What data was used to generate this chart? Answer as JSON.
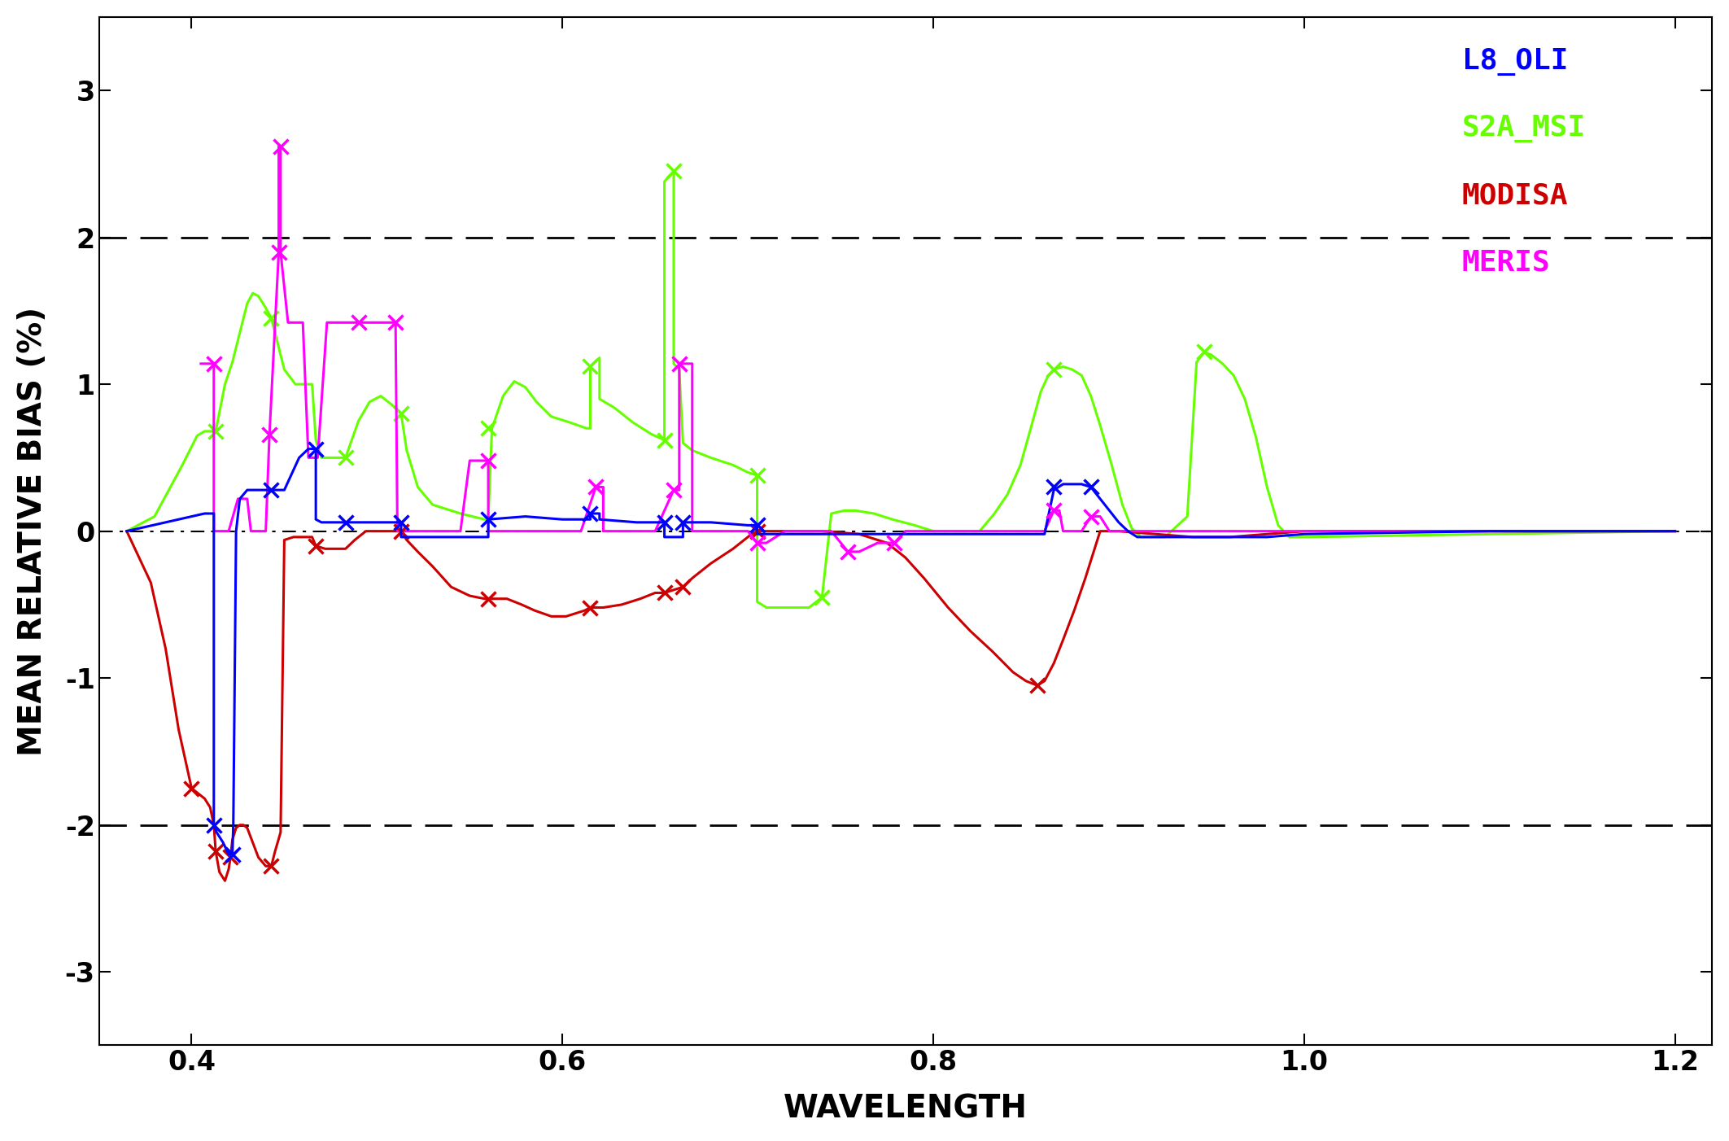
{
  "xlabel": "WAVELENGTH",
  "ylabel": "MEAN RELATIVE BIAS (%)",
  "xlim": [
    0.35,
    1.22
  ],
  "ylim": [
    -3.5,
    3.5
  ],
  "yticks": [
    -3,
    -2,
    -1,
    0,
    1,
    2,
    3
  ],
  "xticks": [
    0.4,
    0.6,
    0.8,
    1.0,
    1.2
  ],
  "colors": {
    "L8_OLI": "#0000ff",
    "S2A_MSI": "#66ff00",
    "MODISA": "#cc0000",
    "MERIS": "#ff00ff"
  },
  "L8_OLI_line": [
    [
      0.365,
      0.0
    ],
    [
      0.407,
      0.12
    ],
    [
      0.412,
      0.12
    ],
    [
      0.412,
      -2.0
    ],
    [
      0.4135,
      -2.05
    ],
    [
      0.417,
      -2.12
    ],
    [
      0.42,
      -2.2
    ],
    [
      0.422,
      -2.2
    ],
    [
      0.4225,
      -2.0
    ],
    [
      0.424,
      0.0
    ],
    [
      0.426,
      0.22
    ],
    [
      0.43,
      0.28
    ],
    [
      0.44,
      0.28
    ],
    [
      0.443,
      0.28
    ],
    [
      0.45,
      0.28
    ],
    [
      0.458,
      0.5
    ],
    [
      0.463,
      0.56
    ],
    [
      0.467,
      0.56
    ],
    [
      0.467,
      0.08
    ],
    [
      0.47,
      0.06
    ],
    [
      0.483,
      0.06
    ],
    [
      0.495,
      0.06
    ],
    [
      0.513,
      0.06
    ],
    [
      0.513,
      -0.04
    ],
    [
      0.53,
      -0.04
    ],
    [
      0.56,
      -0.04
    ],
    [
      0.56,
      0.08
    ],
    [
      0.57,
      0.09
    ],
    [
      0.58,
      0.1
    ],
    [
      0.6,
      0.08
    ],
    [
      0.61,
      0.08
    ],
    [
      0.615,
      0.08
    ],
    [
      0.615,
      0.12
    ],
    [
      0.62,
      0.12
    ],
    [
      0.62,
      0.08
    ],
    [
      0.64,
      0.06
    ],
    [
      0.655,
      0.06
    ],
    [
      0.655,
      -0.04
    ],
    [
      0.66,
      -0.04
    ],
    [
      0.665,
      -0.04
    ],
    [
      0.665,
      0.06
    ],
    [
      0.68,
      0.06
    ],
    [
      0.7,
      0.04
    ],
    [
      0.705,
      0.04
    ],
    [
      0.705,
      -0.02
    ],
    [
      0.71,
      -0.02
    ],
    [
      0.86,
      -0.02
    ],
    [
      0.865,
      0.28
    ],
    [
      0.87,
      0.32
    ],
    [
      0.875,
      0.32
    ],
    [
      0.88,
      0.32
    ],
    [
      0.885,
      0.3
    ],
    [
      0.89,
      0.22
    ],
    [
      0.895,
      0.14
    ],
    [
      0.9,
      0.06
    ],
    [
      0.905,
      0.0
    ],
    [
      0.91,
      -0.04
    ],
    [
      0.94,
      -0.04
    ],
    [
      0.96,
      -0.04
    ],
    [
      0.98,
      -0.04
    ],
    [
      1.0,
      -0.02
    ],
    [
      1.1,
      0.0
    ],
    [
      1.2,
      0.0
    ]
  ],
  "L8_OLI_markers": [
    [
      0.412,
      -2.0
    ],
    [
      0.422,
      -2.2
    ],
    [
      0.443,
      0.28
    ],
    [
      0.467,
      0.56
    ],
    [
      0.483,
      0.06
    ],
    [
      0.513,
      0.06
    ],
    [
      0.56,
      0.08
    ],
    [
      0.615,
      0.12
    ],
    [
      0.655,
      0.06
    ],
    [
      0.665,
      0.06
    ],
    [
      0.705,
      0.04
    ],
    [
      0.865,
      0.3
    ],
    [
      0.885,
      0.3
    ]
  ],
  "S2A_MSI_line": [
    [
      0.365,
      0.0
    ],
    [
      0.38,
      0.1
    ],
    [
      0.395,
      0.45
    ],
    [
      0.403,
      0.65
    ],
    [
      0.407,
      0.68
    ],
    [
      0.413,
      0.68
    ],
    [
      0.418,
      1.0
    ],
    [
      0.422,
      1.15
    ],
    [
      0.426,
      1.35
    ],
    [
      0.43,
      1.55
    ],
    [
      0.433,
      1.62
    ],
    [
      0.436,
      1.6
    ],
    [
      0.44,
      1.52
    ],
    [
      0.443,
      1.45
    ],
    [
      0.446,
      1.3
    ],
    [
      0.45,
      1.1
    ],
    [
      0.456,
      1.0
    ],
    [
      0.462,
      1.0
    ],
    [
      0.465,
      1.0
    ],
    [
      0.467,
      0.62
    ],
    [
      0.47,
      0.5
    ],
    [
      0.476,
      0.5
    ],
    [
      0.483,
      0.5
    ],
    [
      0.49,
      0.75
    ],
    [
      0.496,
      0.88
    ],
    [
      0.502,
      0.92
    ],
    [
      0.508,
      0.86
    ],
    [
      0.513,
      0.8
    ],
    [
      0.513,
      0.8
    ],
    [
      0.516,
      0.55
    ],
    [
      0.522,
      0.3
    ],
    [
      0.53,
      0.18
    ],
    [
      0.545,
      0.12
    ],
    [
      0.558,
      0.08
    ],
    [
      0.56,
      0.08
    ],
    [
      0.562,
      0.7
    ],
    [
      0.568,
      0.92
    ],
    [
      0.574,
      1.02
    ],
    [
      0.58,
      0.98
    ],
    [
      0.586,
      0.88
    ],
    [
      0.594,
      0.78
    ],
    [
      0.604,
      0.74
    ],
    [
      0.613,
      0.7
    ],
    [
      0.615,
      0.7
    ],
    [
      0.615,
      1.12
    ],
    [
      0.62,
      1.18
    ],
    [
      0.62,
      0.9
    ],
    [
      0.628,
      0.84
    ],
    [
      0.638,
      0.74
    ],
    [
      0.648,
      0.66
    ],
    [
      0.655,
      0.62
    ],
    [
      0.655,
      2.38
    ],
    [
      0.66,
      2.45
    ],
    [
      0.66,
      1.14
    ],
    [
      0.663,
      1.1
    ],
    [
      0.665,
      0.6
    ],
    [
      0.67,
      0.55
    ],
    [
      0.68,
      0.5
    ],
    [
      0.692,
      0.45
    ],
    [
      0.7,
      0.4
    ],
    [
      0.705,
      0.38
    ],
    [
      0.705,
      -0.48
    ],
    [
      0.71,
      -0.52
    ],
    [
      0.72,
      -0.52
    ],
    [
      0.733,
      -0.52
    ],
    [
      0.74,
      -0.45
    ],
    [
      0.745,
      0.12
    ],
    [
      0.752,
      0.14
    ],
    [
      0.758,
      0.14
    ],
    [
      0.768,
      0.12
    ],
    [
      0.778,
      0.08
    ],
    [
      0.79,
      0.04
    ],
    [
      0.8,
      0.0
    ],
    [
      0.825,
      0.0
    ],
    [
      0.833,
      0.12
    ],
    [
      0.84,
      0.25
    ],
    [
      0.847,
      0.45
    ],
    [
      0.853,
      0.72
    ],
    [
      0.858,
      0.95
    ],
    [
      0.862,
      1.06
    ],
    [
      0.865,
      1.1
    ],
    [
      0.87,
      1.12
    ],
    [
      0.875,
      1.1
    ],
    [
      0.88,
      1.06
    ],
    [
      0.885,
      0.92
    ],
    [
      0.89,
      0.72
    ],
    [
      0.896,
      0.46
    ],
    [
      0.902,
      0.18
    ],
    [
      0.907,
      0.02
    ],
    [
      0.912,
      -0.04
    ],
    [
      0.925,
      -0.04
    ],
    [
      0.937,
      0.1
    ],
    [
      0.942,
      1.15
    ],
    [
      0.946,
      1.22
    ],
    [
      0.95,
      1.2
    ],
    [
      0.956,
      1.14
    ],
    [
      0.962,
      1.06
    ],
    [
      0.968,
      0.9
    ],
    [
      0.974,
      0.64
    ],
    [
      0.98,
      0.3
    ],
    [
      0.986,
      0.04
    ],
    [
      0.992,
      -0.04
    ],
    [
      1.0,
      -0.04
    ],
    [
      1.1,
      -0.02
    ],
    [
      1.2,
      0.0
    ]
  ],
  "S2A_MSI_markers": [
    [
      0.413,
      0.68
    ],
    [
      0.443,
      1.45
    ],
    [
      0.483,
      0.5
    ],
    [
      0.513,
      0.8
    ],
    [
      0.56,
      0.7
    ],
    [
      0.615,
      1.12
    ],
    [
      0.655,
      0.62
    ],
    [
      0.66,
      2.45
    ],
    [
      0.705,
      0.38
    ],
    [
      0.74,
      -0.45
    ],
    [
      0.865,
      1.1
    ],
    [
      0.946,
      1.22
    ]
  ],
  "MODISA_line": [
    [
      0.365,
      0.0
    ],
    [
      0.378,
      -0.35
    ],
    [
      0.386,
      -0.8
    ],
    [
      0.393,
      -1.35
    ],
    [
      0.4,
      -1.75
    ],
    [
      0.407,
      -1.82
    ],
    [
      0.41,
      -1.88
    ],
    [
      0.412,
      -2.0
    ],
    [
      0.413,
      -2.18
    ],
    [
      0.415,
      -2.32
    ],
    [
      0.418,
      -2.38
    ],
    [
      0.42,
      -2.3
    ],
    [
      0.421,
      -2.22
    ],
    [
      0.422,
      -2.1
    ],
    [
      0.424,
      -2.02
    ],
    [
      0.426,
      -2.0
    ],
    [
      0.428,
      -2.0
    ],
    [
      0.43,
      -2.02
    ],
    [
      0.433,
      -2.12
    ],
    [
      0.436,
      -2.22
    ],
    [
      0.44,
      -2.28
    ],
    [
      0.443,
      -2.28
    ],
    [
      0.445,
      -2.18
    ],
    [
      0.448,
      -2.05
    ],
    [
      0.45,
      -0.06
    ],
    [
      0.455,
      -0.04
    ],
    [
      0.465,
      -0.04
    ],
    [
      0.467,
      -0.1
    ],
    [
      0.472,
      -0.12
    ],
    [
      0.48,
      -0.12
    ],
    [
      0.483,
      -0.12
    ],
    [
      0.488,
      -0.06
    ],
    [
      0.494,
      0.0
    ],
    [
      0.5,
      0.0
    ],
    [
      0.51,
      0.0
    ],
    [
      0.513,
      0.0
    ],
    [
      0.516,
      -0.06
    ],
    [
      0.522,
      -0.14
    ],
    [
      0.53,
      -0.24
    ],
    [
      0.54,
      -0.38
    ],
    [
      0.55,
      -0.44
    ],
    [
      0.558,
      -0.46
    ],
    [
      0.56,
      -0.46
    ],
    [
      0.57,
      -0.46
    ],
    [
      0.578,
      -0.5
    ],
    [
      0.585,
      -0.54
    ],
    [
      0.594,
      -0.58
    ],
    [
      0.602,
      -0.58
    ],
    [
      0.612,
      -0.54
    ],
    [
      0.615,
      -0.52
    ],
    [
      0.622,
      -0.52
    ],
    [
      0.632,
      -0.5
    ],
    [
      0.642,
      -0.46
    ],
    [
      0.65,
      -0.42
    ],
    [
      0.655,
      -0.42
    ],
    [
      0.66,
      -0.4
    ],
    [
      0.665,
      -0.38
    ],
    [
      0.67,
      -0.32
    ],
    [
      0.68,
      -0.22
    ],
    [
      0.692,
      -0.12
    ],
    [
      0.702,
      -0.02
    ],
    [
      0.705,
      0.0
    ],
    [
      0.72,
      0.0
    ],
    [
      0.74,
      0.0
    ],
    [
      0.76,
      -0.02
    ],
    [
      0.775,
      -0.08
    ],
    [
      0.785,
      -0.18
    ],
    [
      0.795,
      -0.32
    ],
    [
      0.808,
      -0.52
    ],
    [
      0.82,
      -0.68
    ],
    [
      0.832,
      -0.82
    ],
    [
      0.843,
      -0.96
    ],
    [
      0.85,
      -1.02
    ],
    [
      0.856,
      -1.05
    ],
    [
      0.86,
      -1.02
    ],
    [
      0.865,
      -0.9
    ],
    [
      0.87,
      -0.74
    ],
    [
      0.876,
      -0.54
    ],
    [
      0.882,
      -0.32
    ],
    [
      0.887,
      -0.12
    ],
    [
      0.89,
      0.0
    ],
    [
      0.9,
      0.0
    ],
    [
      0.92,
      -0.02
    ],
    [
      0.94,
      -0.04
    ],
    [
      0.95,
      -0.04
    ],
    [
      0.96,
      -0.04
    ],
    [
      0.98,
      -0.02
    ],
    [
      1.0,
      0.0
    ],
    [
      1.2,
      0.0
    ]
  ],
  "MODISA_markers": [
    [
      0.4,
      -1.75
    ],
    [
      0.413,
      -2.18
    ],
    [
      0.421,
      -2.22
    ],
    [
      0.443,
      -2.28
    ],
    [
      0.467,
      -0.1
    ],
    [
      0.513,
      0.0
    ],
    [
      0.56,
      -0.46
    ],
    [
      0.615,
      -0.52
    ],
    [
      0.655,
      -0.42
    ],
    [
      0.665,
      -0.38
    ],
    [
      0.705,
      0.0
    ],
    [
      0.856,
      -1.05
    ]
  ],
  "MERIS_line": [
    [
      0.405,
      1.14
    ],
    [
      0.412,
      1.14
    ],
    [
      0.412,
      0.0
    ],
    [
      0.42,
      0.0
    ],
    [
      0.425,
      0.22
    ],
    [
      0.43,
      0.22
    ],
    [
      0.432,
      0.0
    ],
    [
      0.44,
      0.0
    ],
    [
      0.442,
      0.66
    ],
    [
      0.447,
      1.9
    ],
    [
      0.447,
      2.62
    ],
    [
      0.448,
      2.62
    ],
    [
      0.448,
      1.9
    ],
    [
      0.452,
      1.42
    ],
    [
      0.455,
      1.42
    ],
    [
      0.46,
      1.42
    ],
    [
      0.463,
      0.5
    ],
    [
      0.468,
      0.5
    ],
    [
      0.473,
      1.42
    ],
    [
      0.48,
      1.42
    ],
    [
      0.49,
      1.42
    ],
    [
      0.51,
      1.42
    ],
    [
      0.511,
      0.0
    ],
    [
      0.52,
      0.0
    ],
    [
      0.545,
      0.0
    ],
    [
      0.55,
      0.48
    ],
    [
      0.556,
      0.48
    ],
    [
      0.56,
      0.48
    ],
    [
      0.56,
      0.0
    ],
    [
      0.58,
      0.0
    ],
    [
      0.61,
      0.0
    ],
    [
      0.618,
      0.3
    ],
    [
      0.622,
      0.3
    ],
    [
      0.622,
      0.0
    ],
    [
      0.65,
      0.0
    ],
    [
      0.66,
      0.28
    ],
    [
      0.663,
      0.28
    ],
    [
      0.663,
      1.14
    ],
    [
      0.67,
      1.14
    ],
    [
      0.67,
      0.0
    ],
    [
      0.7,
      0.0
    ],
    [
      0.705,
      -0.08
    ],
    [
      0.71,
      -0.08
    ],
    [
      0.72,
      0.0
    ],
    [
      0.745,
      0.0
    ],
    [
      0.754,
      -0.14
    ],
    [
      0.76,
      -0.14
    ],
    [
      0.77,
      -0.08
    ],
    [
      0.779,
      -0.08
    ],
    [
      0.785,
      0.0
    ],
    [
      0.86,
      0.0
    ],
    [
      0.865,
      0.14
    ],
    [
      0.868,
      0.14
    ],
    [
      0.87,
      0.0
    ],
    [
      0.88,
      0.0
    ],
    [
      0.885,
      0.1
    ],
    [
      0.89,
      0.1
    ],
    [
      0.895,
      0.0
    ],
    [
      1.2,
      0.0
    ]
  ],
  "MERIS_markers": [
    [
      0.412,
      1.14
    ],
    [
      0.442,
      0.66
    ],
    [
      0.447,
      1.9
    ],
    [
      0.448,
      2.62
    ],
    [
      0.49,
      1.42
    ],
    [
      0.51,
      1.42
    ],
    [
      0.56,
      0.48
    ],
    [
      0.618,
      0.3
    ],
    [
      0.66,
      0.28
    ],
    [
      0.663,
      1.14
    ],
    [
      0.705,
      -0.08
    ],
    [
      0.754,
      -0.14
    ],
    [
      0.779,
      -0.08
    ],
    [
      0.865,
      0.14
    ],
    [
      0.885,
      0.1
    ]
  ]
}
